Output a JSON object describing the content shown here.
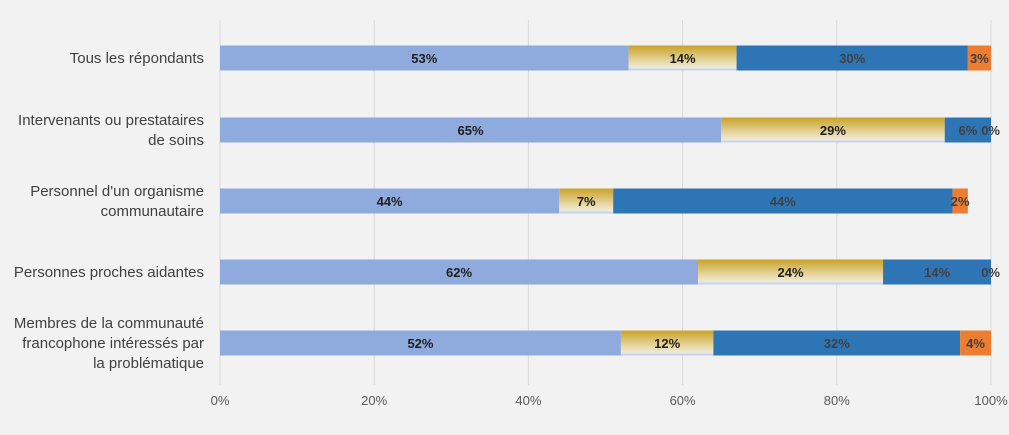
{
  "chart_data": {
    "type": "bar",
    "orientation": "horizontal",
    "stacked": true,
    "categories": [
      "Tous les répondants",
      "Intervenants ou prestataires de soins",
      "Personnel d'un organisme communautaire",
      "Personnes proches aidantes",
      "Membres de la communauté francophone intéressés par la problématique"
    ],
    "category_lines": [
      [
        "Tous les répondants"
      ],
      [
        "Intervenants ou prestataires",
        "de soins"
      ],
      [
        "Personnel d'un organisme",
        "communautaire"
      ],
      [
        "Personnes proches aidantes"
      ],
      [
        "Membres de la communauté",
        "francophone intéressés par",
        "la problématique"
      ]
    ],
    "series": [
      {
        "color": "#8faadc",
        "label_color": "#1f1f1f",
        "values": [
          53,
          65,
          44,
          62,
          52
        ],
        "labels": [
          "53%",
          "65%",
          "44%",
          "62%",
          "52%"
        ]
      },
      {
        "color": "#c9a227",
        "label_color": "#1f1f1f",
        "values": [
          14,
          29,
          7,
          24,
          12
        ],
        "labels": [
          "14%",
          "29%",
          "7%",
          "24%",
          "12%"
        ]
      },
      {
        "color": "#2e75b6",
        "label_color": "#404040",
        "values": [
          30,
          6,
          44,
          14,
          32
        ],
        "labels": [
          "30%",
          "6%",
          "44%",
          "14%",
          "32%"
        ]
      },
      {
        "color": "#ed7d31",
        "label_color": "#404040",
        "values": [
          3,
          0,
          2,
          0,
          4
        ],
        "labels": [
          "3%",
          "0%",
          "2%",
          "0%",
          "4%"
        ]
      }
    ],
    "xlim": [
      0,
      100
    ],
    "x_ticks": [
      0,
      20,
      40,
      60,
      80,
      100
    ],
    "x_tick_labels": [
      "0%",
      "20%",
      "40%",
      "60%",
      "80%",
      "100%"
    ],
    "grid": true,
    "legend": "none",
    "title": "",
    "xlabel": "",
    "ylabel": ""
  }
}
